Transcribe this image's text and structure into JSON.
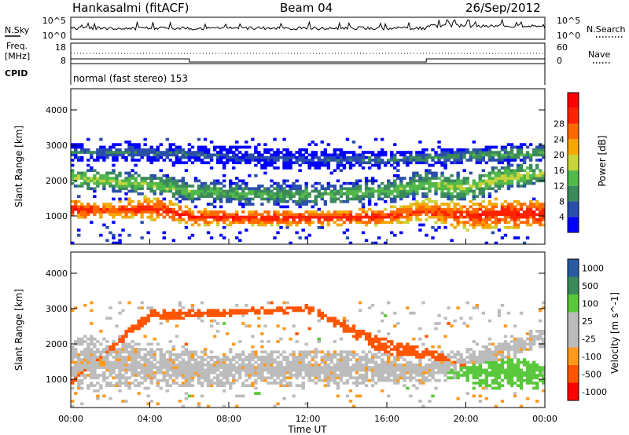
{
  "header": {
    "station": "Hankasalmi (fitACF)",
    "beam": "Beam 04",
    "date": "26/Sep/2012"
  },
  "noise_panel": {
    "left_label": "N.Sky",
    "right_label": "N.Search",
    "left_ticks": [
      "10^5",
      "10^0"
    ],
    "right_ticks": [
      "10^5",
      "10^0"
    ]
  },
  "freq_panel": {
    "left_label_1": "Freq.",
    "left_label_2": "[MHz]",
    "right_label": "Nave",
    "left_ticks": [
      "18",
      "8"
    ],
    "right_ticks": [
      "60",
      "0"
    ]
  },
  "cpid": {
    "label": "CPID",
    "text": "normal (fast stereo) 153"
  },
  "colors": {
    "power": [
      "#0000ff",
      "#2a4faa",
      "#3c8a5c",
      "#52b84a",
      "#c8d43c",
      "#f5a800",
      "#ff6a00",
      "#ff2200",
      "#ff0000"
    ],
    "velocity": [
      "#ff0000",
      "#ff5500",
      "#ff9a1e",
      "#bcbcbc",
      "#bcbcbc",
      "#5ac83c",
      "#3c8a5c",
      "#2a5aa0"
    ]
  },
  "chart_data": [
    {
      "type": "heatmap",
      "title": "",
      "xlabel": "",
      "ylabel": "Slant Range [km]",
      "xlim": [
        0,
        24
      ],
      "ylim": [
        200,
        4600
      ],
      "yticks": [
        "1000",
        "2000",
        "3000",
        "4000"
      ],
      "colorbar_label": "Power [dB]",
      "colorbar_ticks": [
        "4",
        "8",
        "12",
        "16",
        "20",
        "24",
        "28"
      ],
      "colorbar_range": [
        0,
        32
      ],
      "bands": [
        {
          "name": "main",
          "t": [
            0,
            2,
            4,
            6,
            8,
            10,
            12,
            14,
            16,
            18,
            20,
            22,
            24
          ],
          "center": [
            1200,
            1150,
            1250,
            1000,
            950,
            950,
            950,
            950,
            1000,
            1150,
            1000,
            1100,
            1050
          ],
          "width": [
            600,
            500,
            700,
            500,
            450,
            450,
            450,
            450,
            500,
            700,
            800,
            900,
            800
          ],
          "level": [
            28,
            26,
            27,
            28,
            28,
            28,
            28,
            28,
            27,
            25,
            27,
            28,
            28
          ]
        },
        {
          "name": "upper",
          "t": [
            0,
            2,
            4,
            6,
            8,
            10,
            12,
            14,
            16,
            18,
            20,
            22,
            24
          ],
          "center": [
            2100,
            2000,
            1900,
            1700,
            1650,
            1600,
            1600,
            1650,
            1700,
            1900,
            1800,
            2100,
            2200
          ],
          "width": [
            600,
            600,
            700,
            700,
            700,
            700,
            700,
            700,
            700,
            800,
            800,
            700,
            600
          ],
          "level": [
            16,
            15,
            14,
            13,
            12,
            12,
            12,
            12,
            13,
            14,
            15,
            16,
            15
          ]
        },
        {
          "name": "top",
          "t": [
            0,
            4,
            8,
            12,
            16,
            20,
            24
          ],
          "center": [
            2800,
            2800,
            2700,
            2600,
            2600,
            2700,
            2800
          ],
          "width": [
            500,
            500,
            600,
            600,
            500,
            500,
            500
          ],
          "level": [
            8,
            8,
            6,
            6,
            8,
            10,
            12
          ]
        }
      ]
    },
    {
      "type": "heatmap",
      "title": "",
      "xlabel": "Time UT",
      "ylabel": "Slant Range [km]",
      "xlim": [
        0,
        24
      ],
      "ylim": [
        200,
        4600
      ],
      "xticks": [
        "00:00",
        "04:00",
        "08:00",
        "12:00",
        "16:00",
        "20:00",
        "00:00"
      ],
      "yticks": [
        "1000",
        "2000",
        "3000",
        "4000"
      ],
      "colorbar_label": "Velocity [m s^-1]",
      "colorbar_ticks": [
        "1000",
        "500",
        "100",
        "25",
        "-25",
        "-100",
        "-500",
        "-1000"
      ],
      "colorbar_range": [
        -1000,
        1000
      ],
      "bands": [
        {
          "name": "ground-scatter",
          "t": [
            0,
            2,
            4,
            6,
            8,
            10,
            12,
            14,
            16,
            18,
            20,
            22,
            24
          ],
          "center": [
            1500,
            1400,
            1400,
            1300,
            1300,
            1300,
            1300,
            1300,
            1300,
            1300,
            1500,
            1800,
            2200
          ],
          "width": [
            1600,
            1500,
            1300,
            1100,
            1100,
            1100,
            1100,
            1100,
            1100,
            1000,
            700,
            600,
            500
          ],
          "level": [
            0,
            0,
            0,
            0,
            0,
            0,
            0,
            0,
            0,
            0,
            0,
            0,
            0
          ]
        },
        {
          "name": "positive",
          "t": [
            18,
            20,
            22,
            24
          ],
          "center": [
            1200,
            1300,
            1200,
            1100
          ],
          "width": [
            300,
            900,
            1000,
            700
          ],
          "level": [
            0,
            150,
            200,
            120
          ]
        },
        {
          "name": "negative",
          "t": [
            0,
            4,
            8,
            12,
            16,
            18,
            20
          ],
          "center": [
            900,
            2800,
            2900,
            3000,
            1900,
            1700,
            1400
          ],
          "width": [
            200,
            300,
            200,
            200,
            500,
            400,
            300
          ],
          "level": [
            -120,
            -300,
            -200,
            -150,
            -250,
            -400,
            -300
          ]
        }
      ]
    }
  ]
}
